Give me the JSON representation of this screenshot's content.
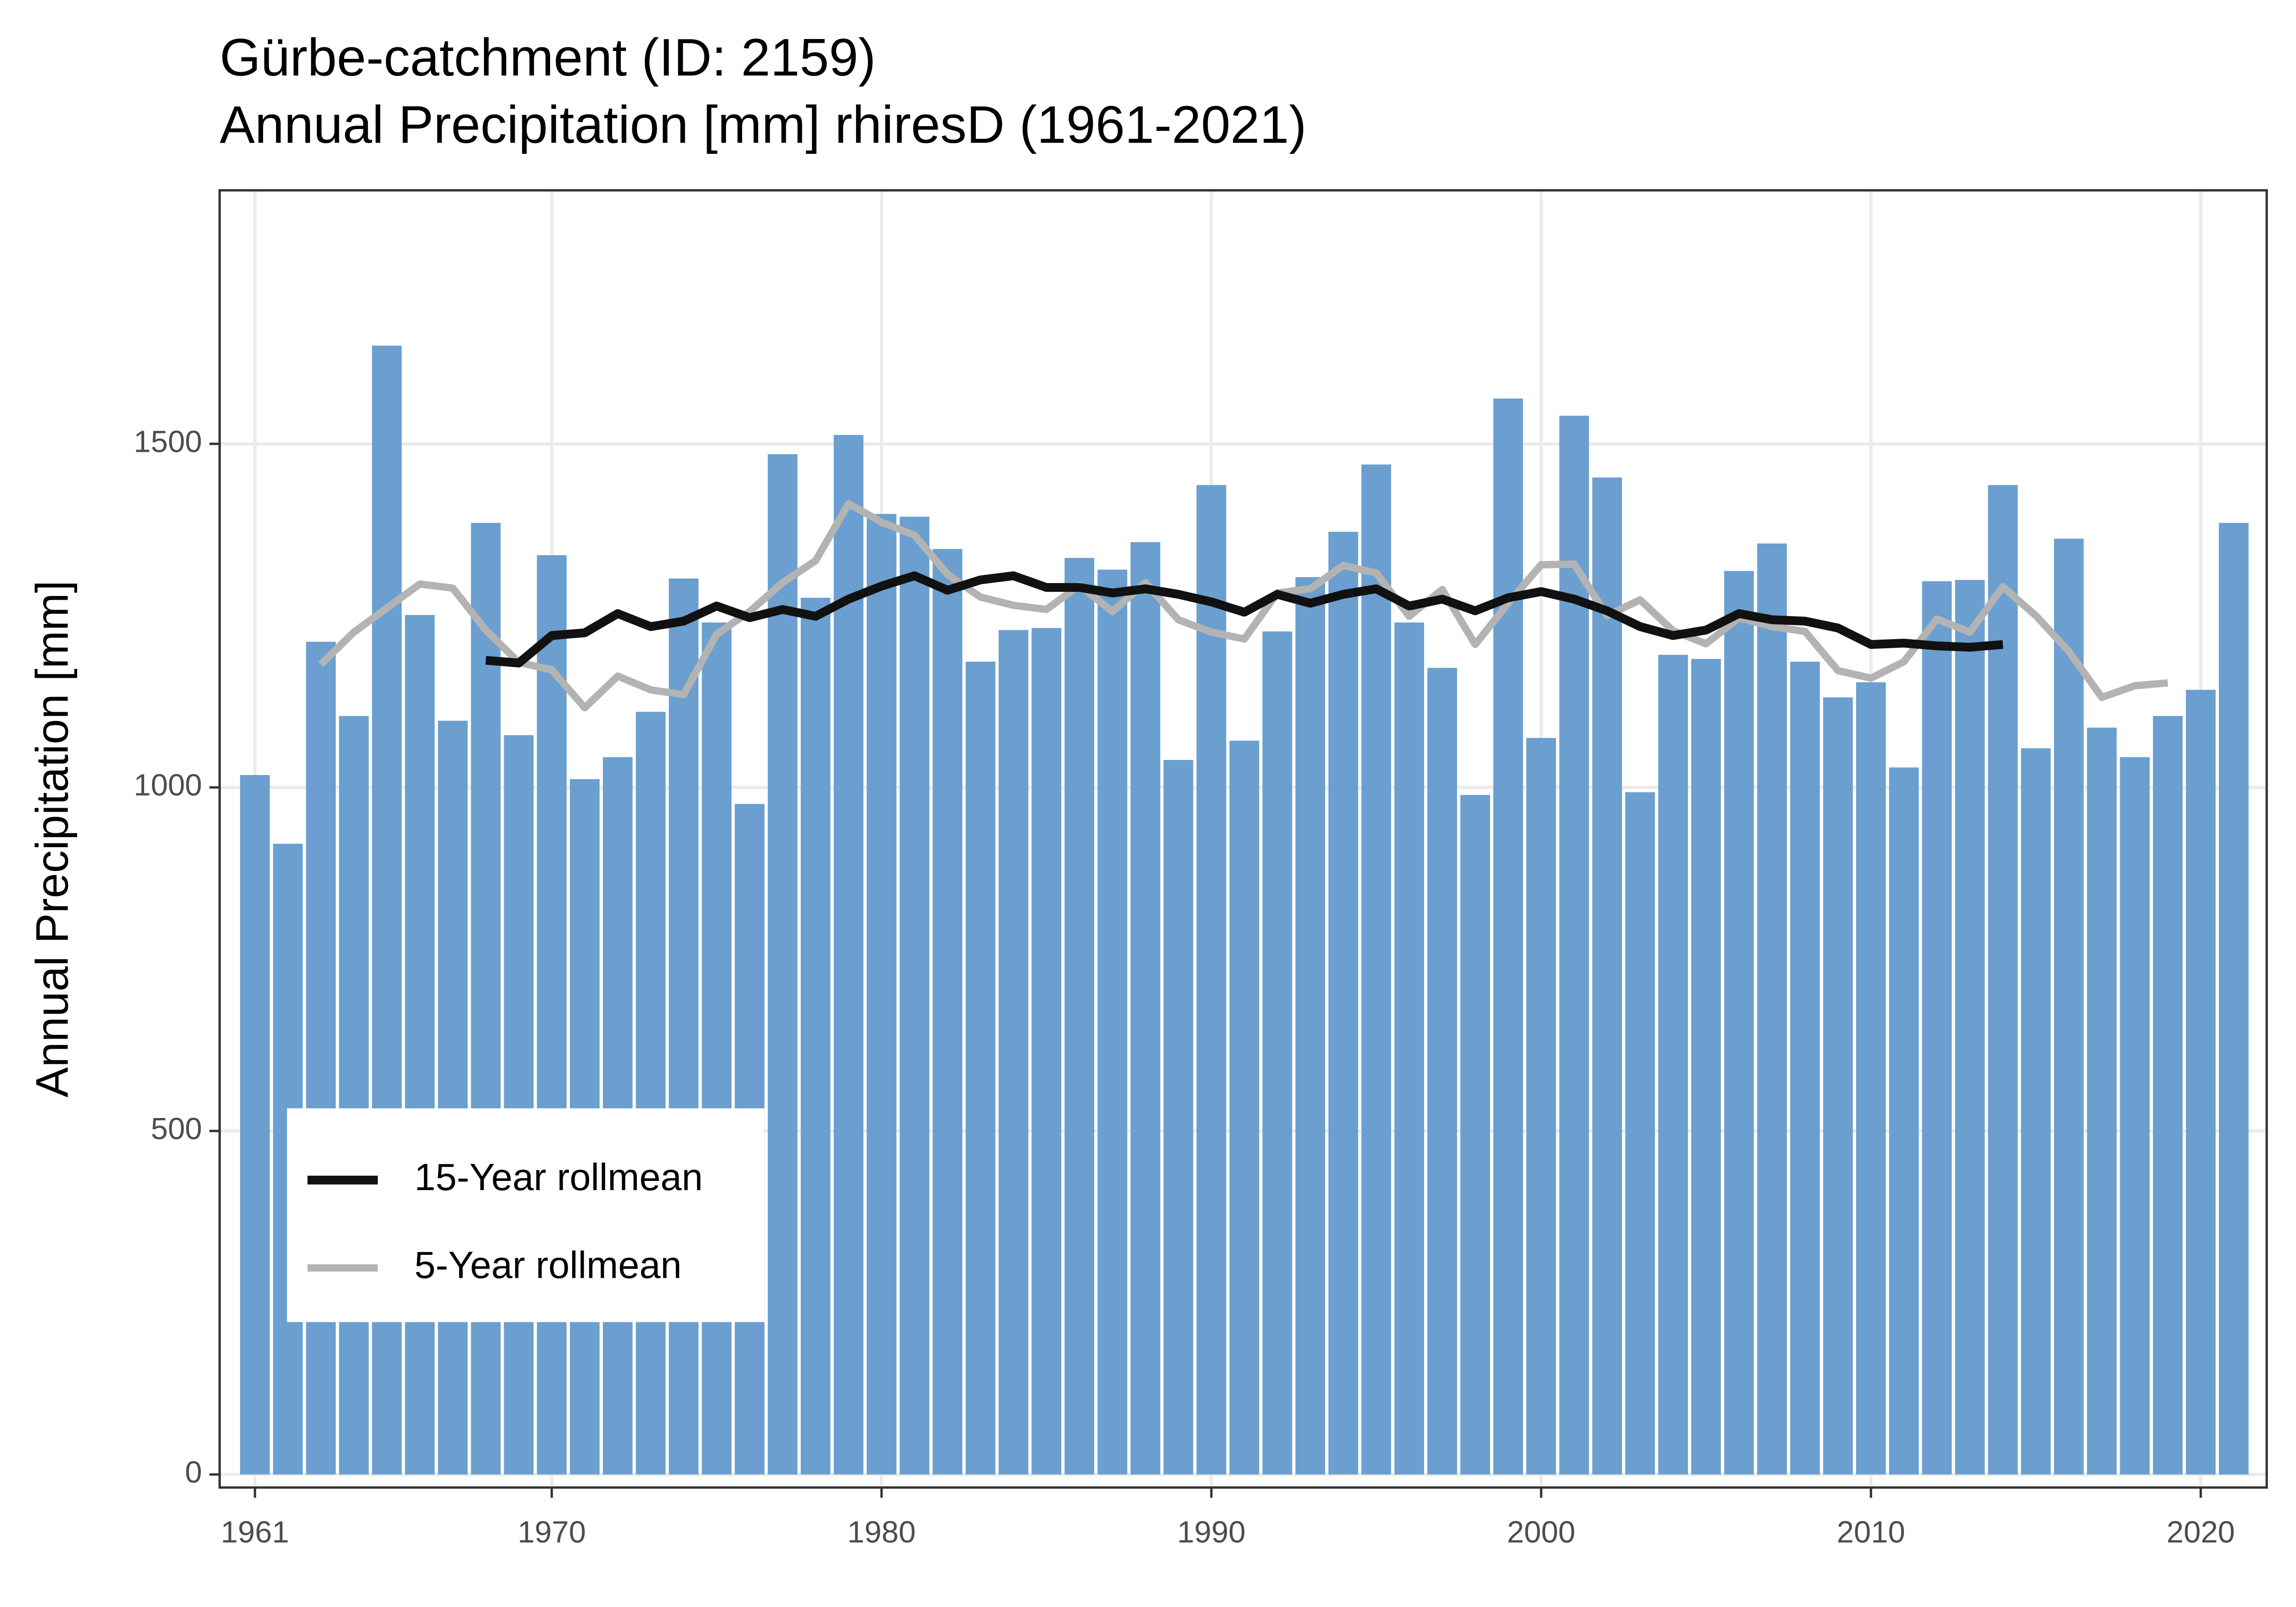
{
  "chart_data": {
    "type": "bar",
    "title": "Gürbe-catchment (ID: 2159)",
    "subtitle": "Annual Precipitation [mm] rhiresD (1961-2021)",
    "y_label": "Annual Precipitation [mm]",
    "x": [
      1961,
      1962,
      1963,
      1964,
      1965,
      1966,
      1967,
      1968,
      1969,
      1970,
      1971,
      1972,
      1973,
      1974,
      1975,
      1976,
      1977,
      1978,
      1979,
      1980,
      1981,
      1982,
      1983,
      1984,
      1985,
      1986,
      1987,
      1988,
      1989,
      1990,
      1991,
      1992,
      1993,
      1994,
      1995,
      1996,
      1997,
      1998,
      1999,
      2000,
      2001,
      2002,
      2003,
      2004,
      2005,
      2006,
      2007,
      2008,
      2009,
      2010,
      2011,
      2012,
      2013,
      2014,
      2015,
      2016,
      2017,
      2018,
      2019,
      2020,
      2021
    ],
    "values": [
      1018,
      918,
      1212,
      1104,
      1643,
      1251,
      1097,
      1385,
      1076,
      1338,
      1012,
      1044,
      1110,
      1304,
      1240,
      976,
      1485,
      1276,
      1513,
      1398,
      1394,
      1347,
      1183,
      1229,
      1232,
      1334,
      1317,
      1357,
      1040,
      1440,
      1068,
      1227,
      1306,
      1372,
      1470,
      1240,
      1174,
      989,
      1566,
      1072,
      1541,
      1451,
      993,
      1193,
      1187,
      1315,
      1355,
      1183,
      1131,
      1153,
      1029,
      1300,
      1302,
      1440,
      1057,
      1362,
      1087,
      1044,
      1104,
      1142,
      1385
    ],
    "color": "#6a9fd0",
    "series": [
      {
        "name": "15-Year rollmean",
        "type": "line",
        "color": "#111111",
        "values": [
          null,
          null,
          null,
          null,
          null,
          null,
          null,
          1185,
          1181,
          1221,
          1225,
          1253,
          1234,
          1242,
          1264,
          1247,
          1259,
          1249,
          1274,
          1293,
          1308,
          1287,
          1302,
          1308,
          1291,
          1291,
          1283,
          1289,
          1281,
          1270,
          1255,
          1281,
          1268,
          1281,
          1289,
          1264,
          1274,
          1257,
          1276,
          1285,
          1274,
          1257,
          1234,
          1221,
          1229,
          1253,
          1244,
          1242,
          1232,
          1208,
          1210,
          1206,
          1204,
          1208,
          null,
          null,
          null,
          null,
          null,
          null,
          null
        ]
      },
      {
        "name": "5-Year rollmean",
        "type": "line",
        "color": "#b3b3b3",
        "values": [
          null,
          null,
          1179,
          1226,
          1261,
          1296,
          1290,
          1229,
          1182,
          1171,
          1116,
          1162,
          1142,
          1135,
          1223,
          1256,
          1298,
          1330,
          1413,
          1386,
          1367,
          1310,
          1277,
          1265,
          1259,
          1294,
          1256,
          1298,
          1244,
          1226,
          1216,
          1283,
          1289,
          1323,
          1312,
          1249,
          1288,
          1208,
          1268,
          1324,
          1325,
          1250,
          1273,
          1228,
          1209,
          1247,
          1234,
          1227,
          1170,
          1159,
          1183,
          1245,
          1226,
          1292,
          1250,
          1198,
          1131,
          1148,
          1152,
          null,
          null
        ]
      }
    ],
    "xlim": [
      1959.93,
      2022.0
    ],
    "ylim": [
      -19,
      1869
    ],
    "xticks": [
      1961,
      1970,
      1980,
      1990,
      2000,
      2010,
      2020
    ],
    "yticks": [
      0,
      500,
      1000,
      1500
    ],
    "grid": true,
    "legend": "bottom-left"
  }
}
